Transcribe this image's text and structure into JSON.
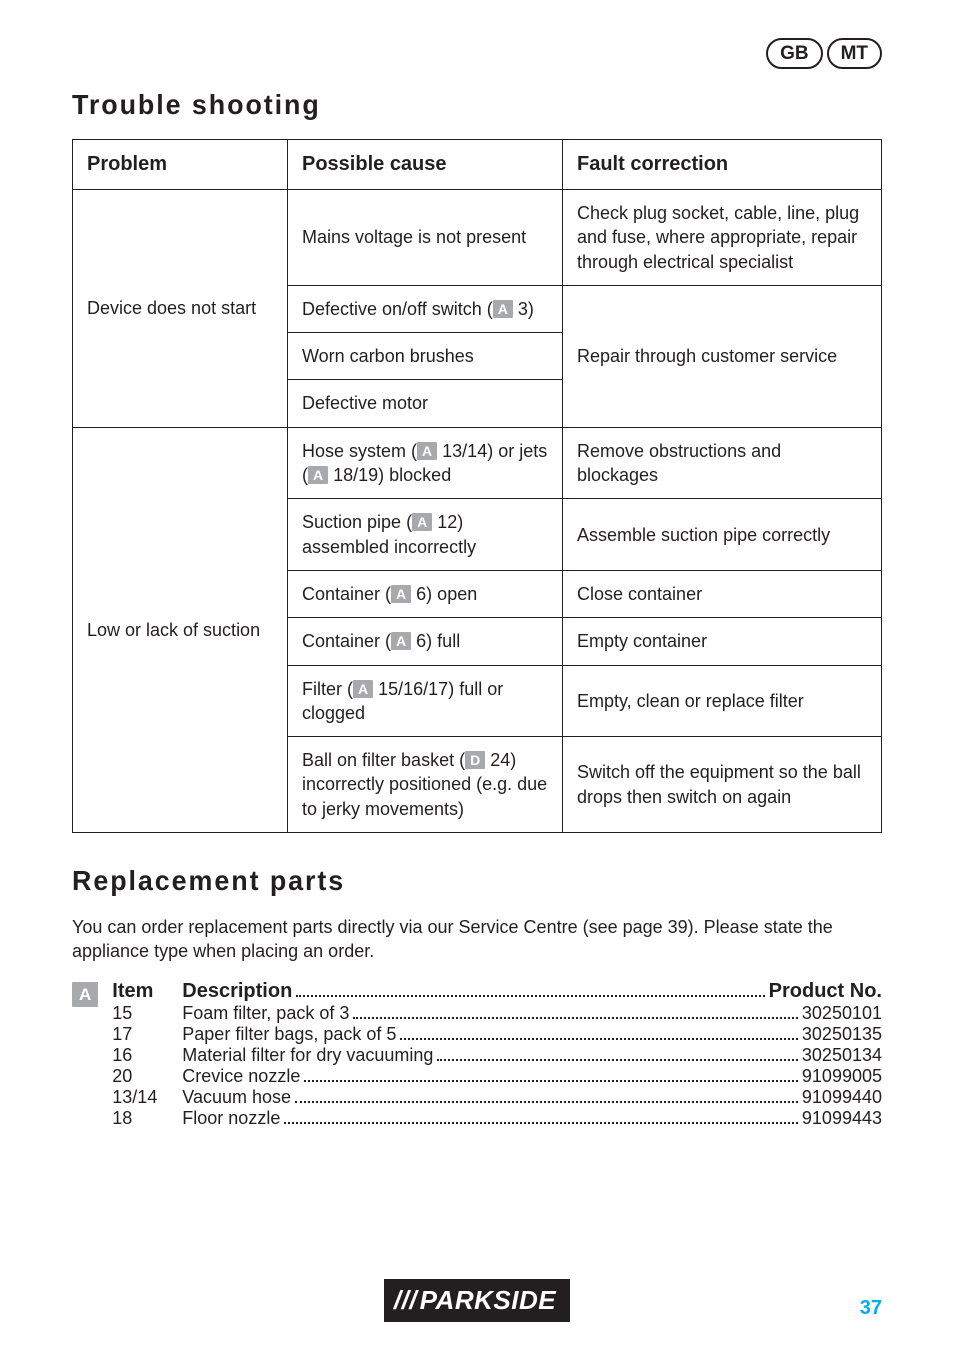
{
  "header": {
    "left_pill": "GB",
    "right_pill": "MT"
  },
  "sections": {
    "trouble_title": "Trouble shooting",
    "replacement_title": "Replacement parts"
  },
  "trouble_table": {
    "headers": {
      "problem": "Problem",
      "cause": "Possible cause",
      "correction": "Fault correction"
    },
    "group1": {
      "problem": "Device does not start",
      "rows": [
        {
          "cause": "Mains voltage is not present",
          "fix": "Check plug socket, cable, line, plug and fuse, where appropriate, repair through electrical specialist"
        },
        {
          "cause_pre": "Defective on/off switch (",
          "ref": "A",
          "cause_post": " 3)",
          "fix": "Repair through customer service"
        },
        {
          "cause": "Worn carbon brushes"
        },
        {
          "cause": "Defective motor"
        }
      ]
    },
    "group2": {
      "problem": "Low or lack of suction",
      "rows": [
        {
          "cause_pre": "Hose system (",
          "ref": "A",
          "cause_mid": " 13/14) or jets (",
          "ref2": "A",
          "cause_post": " 18/19) blocked",
          "fix": "Remove obstructions and blockages"
        },
        {
          "cause_pre": "Suction pipe (",
          "ref": "A",
          "cause_post": " 12) assembled incorrectly",
          "fix": "Assemble suction pipe correctly"
        },
        {
          "cause_pre": "Container (",
          "ref": "A",
          "cause_post": " 6) open",
          "fix": "Close container"
        },
        {
          "cause_pre": "Container (",
          "ref": "A",
          "cause_post": " 6) full",
          "fix": "Empty container"
        },
        {
          "cause_pre": "Filter (",
          "ref": "A",
          "cause_post": " 15/16/17) full or clogged",
          "fix": "Empty, clean or replace filter"
        },
        {
          "cause_pre": "Ball on filter basket (",
          "ref": "D",
          "cause_post": " 24) incorrectly positioned (e.g. due to jerky movements)",
          "fix": "Switch off the equipment so the ball drops then switch on again"
        }
      ]
    }
  },
  "replacement_note": "You can order replacement parts directly via our Service Centre (see page 39). Please state the appliance type when placing an order.",
  "parts_badge": "A",
  "parts_header": {
    "item": "Item",
    "desc": "Description",
    "prod": "Product No."
  },
  "parts": [
    {
      "item": "15",
      "desc": "Foam filter, pack of 3",
      "prod": "30250101"
    },
    {
      "item": "17",
      "desc": "Paper filter bags, pack of 5",
      "prod": "30250135"
    },
    {
      "item": "16",
      "desc": "Material filter for dry vacuuming",
      "prod": "30250134"
    },
    {
      "item": "20",
      "desc": "Crevice nozzle",
      "prod": "91099005"
    },
    {
      "item": "13/14",
      "desc": "Vacuum hose",
      "prod": "91099440"
    },
    {
      "item": "18",
      "desc": "Floor nozzle",
      "prod": "91099443"
    }
  ],
  "logo": {
    "prefix": "///",
    "text": " PARKSIDE"
  },
  "page_number": "37",
  "colors": {
    "text": "#231f20",
    "ref_bg": "#a7a9ac",
    "page_num": "#00aeef"
  }
}
